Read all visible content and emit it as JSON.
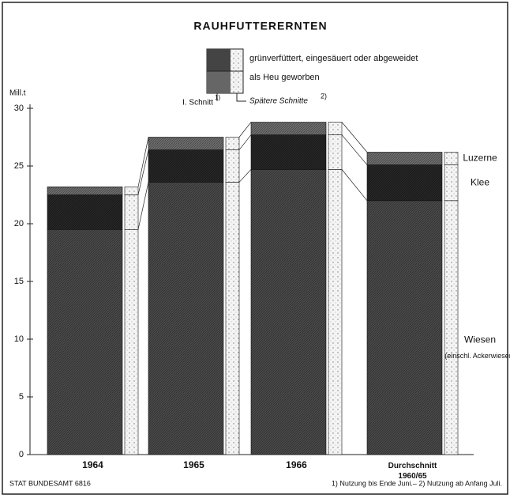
{
  "chart_data": {
    "type": "stacked_bar",
    "title": "RAUHFUTTERERNTEN",
    "y_label": "Mill.t",
    "legend": {
      "top": "grünverfüttert, eingesäuert oder abgeweidet",
      "bottom": "als Heu geworben",
      "first_cut": "I. Schnitt",
      "first_cut_note": "1)",
      "later_cuts": "Spätere Schnitte",
      "later_cuts_note": "2)"
    },
    "categories": [
      "1964",
      "1965",
      "1966",
      "Durchschnitt 1960/65"
    ],
    "series": [
      {
        "name": "Wiesen",
        "note": "(einschl. Ackerwiesen)",
        "color": "#4a4a4a",
        "values": [
          19.5,
          23.6,
          24.7,
          22.0
        ]
      },
      {
        "name": "Klee",
        "color": "#262626",
        "values": [
          3.0,
          2.8,
          3.0,
          3.1
        ]
      },
      {
        "name": "Luzerne",
        "color": "#6e6e6e",
        "values": [
          0.7,
          1.1,
          1.1,
          1.1
        ]
      }
    ],
    "ylim": [
      0,
      30
    ],
    "yticks": [
      0,
      5,
      10,
      15,
      20,
      25,
      30
    ],
    "source": "STAT BUNDESAMT 6816",
    "footnote": "1) Nutzung bis Ende Juni.– 2) Nutzung ab Anfang Juli."
  }
}
